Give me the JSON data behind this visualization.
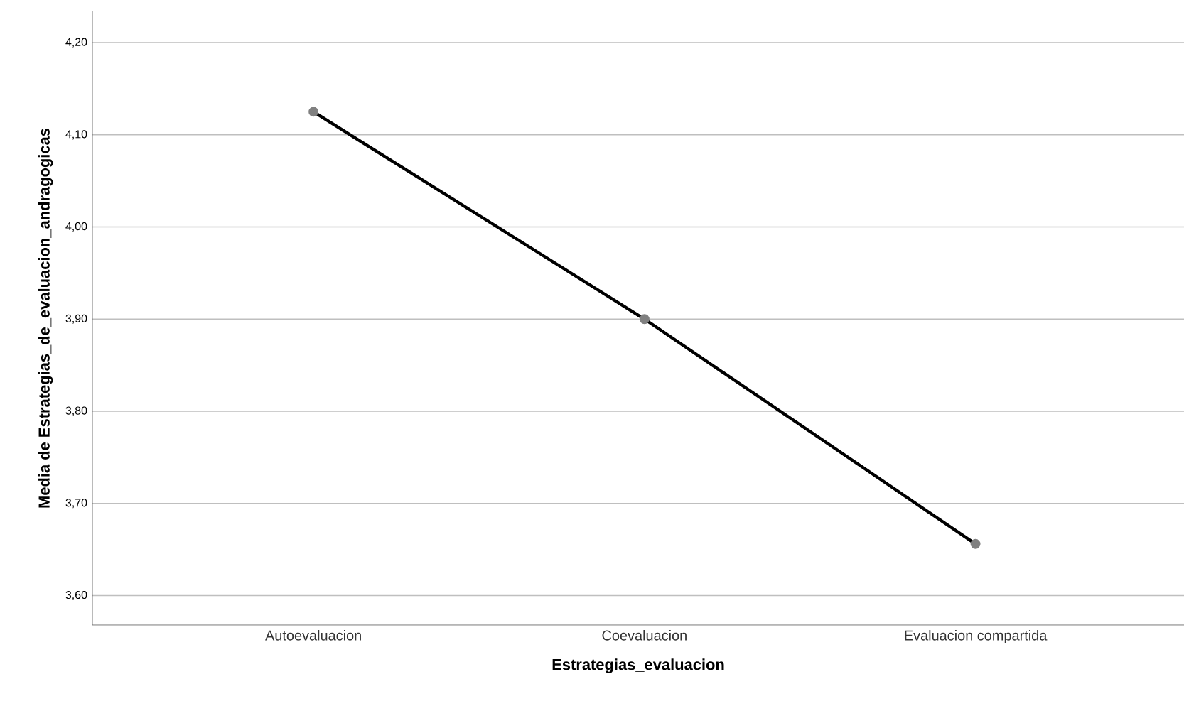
{
  "chart_data": {
    "type": "line",
    "xlabel": "Estrategias_evaluacion",
    "ylabel": "Media de Estrategias_de_evaluacion_andragogicas",
    "categories": [
      "Autoevaluacion",
      "Coevaluacion",
      "Evaluacion compartida"
    ],
    "series": [
      {
        "color": "#000000",
        "values": [
          4.125,
          3.9,
          3.656
        ]
      }
    ],
    "ylim": [
      3.568,
      4.234
    ],
    "yticks": [
      {
        "value": 3.6,
        "label": "3,60"
      },
      {
        "value": 3.7,
        "label": "3,70"
      },
      {
        "value": 3.8,
        "label": "3,80"
      },
      {
        "value": 3.9,
        "label": "3,90"
      },
      {
        "value": 4.0,
        "label": "4,00"
      },
      {
        "value": 4.1,
        "label": "4,10"
      },
      {
        "value": 4.2,
        "label": "4,20"
      }
    ],
    "grid": "y",
    "marker": "circle",
    "line_style": "solid"
  }
}
